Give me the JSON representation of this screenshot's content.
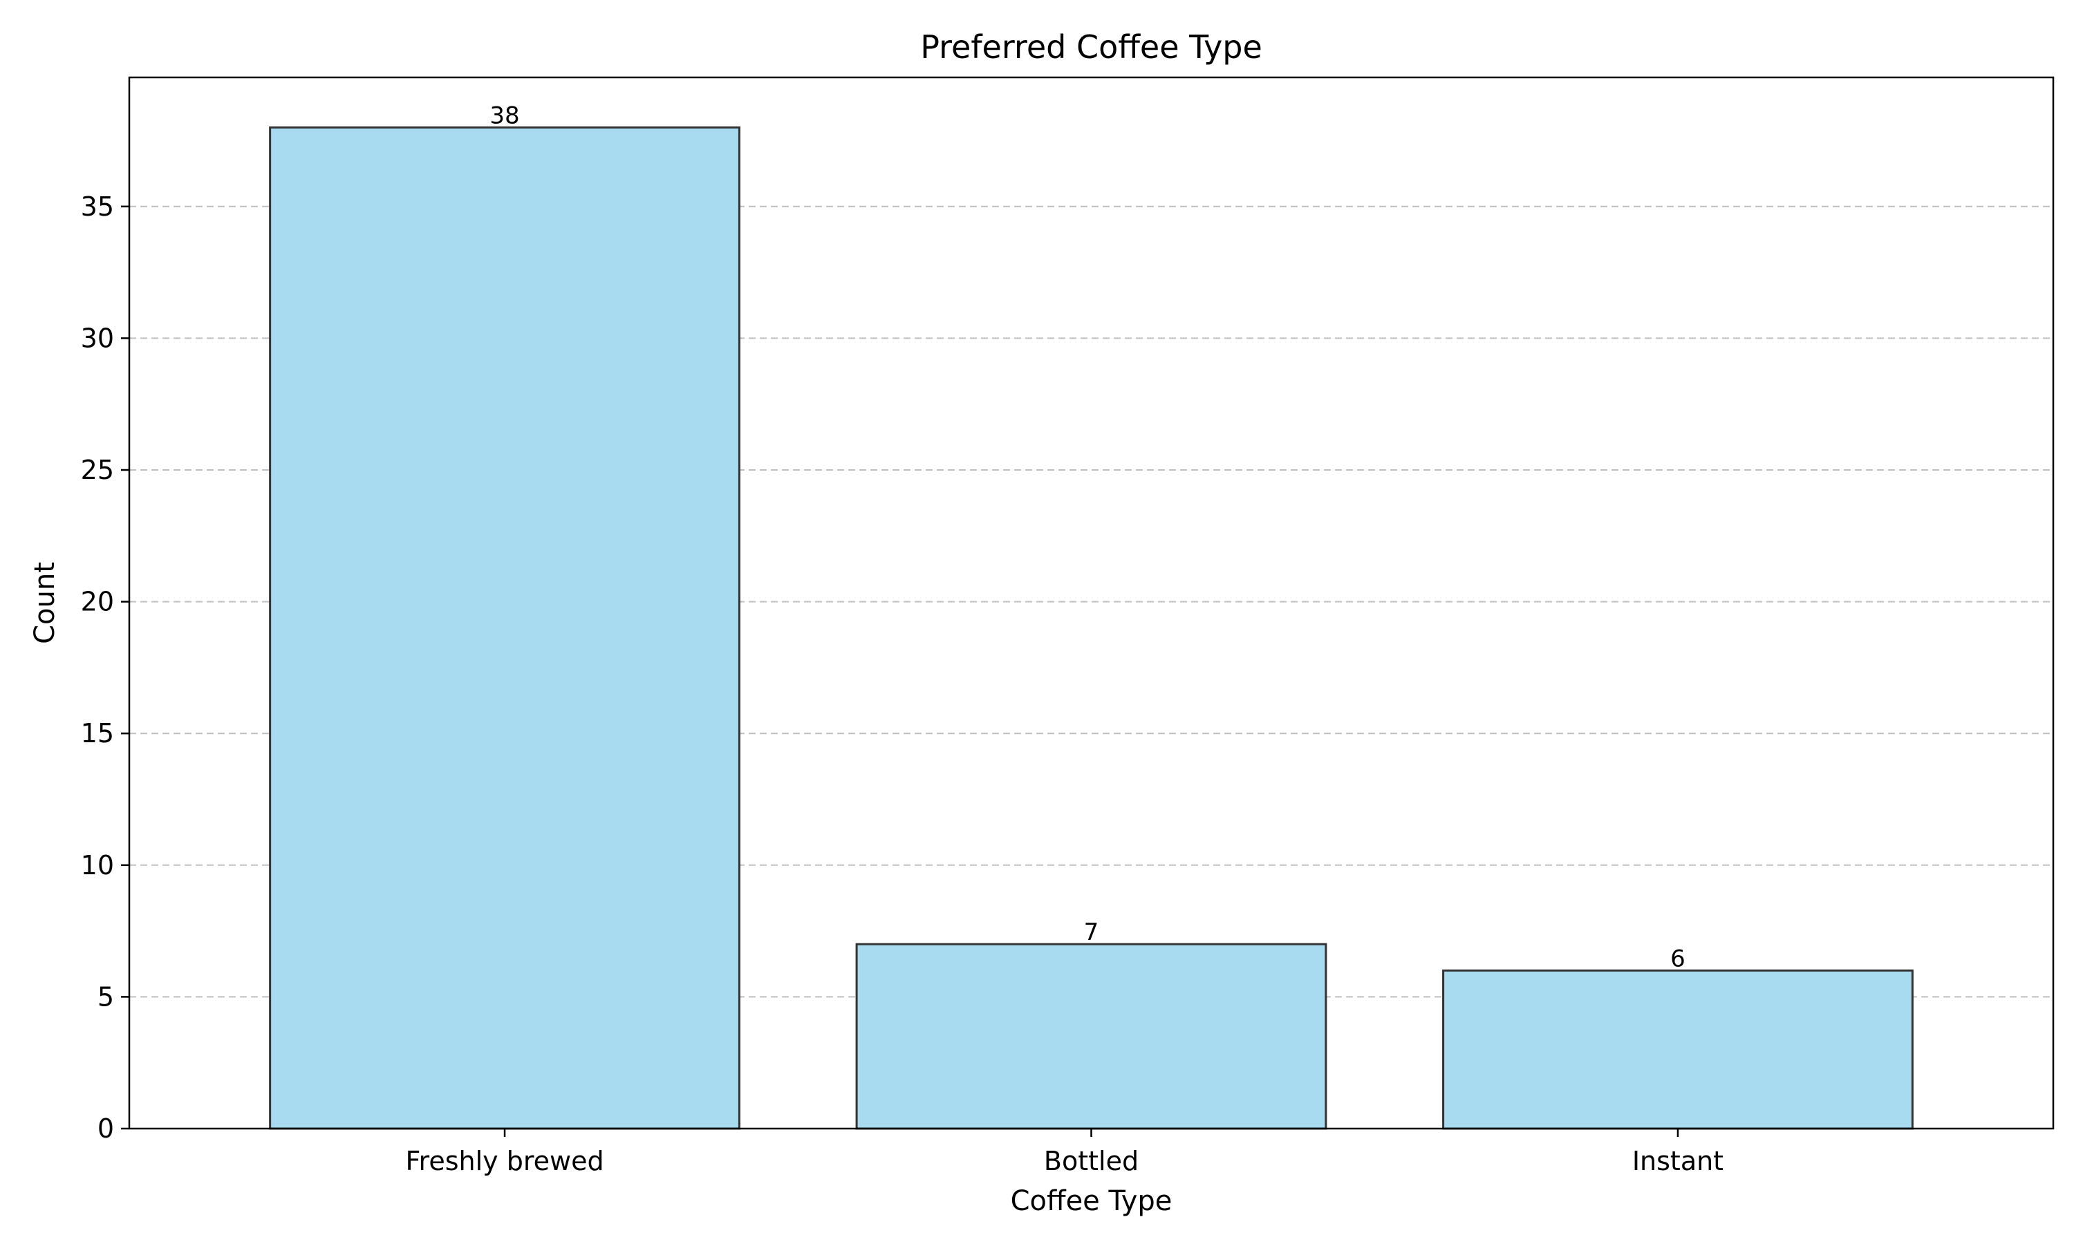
{
  "chart_data": {
    "type": "bar",
    "title": "Preferred Coffee Type",
    "xlabel": "Coffee Type",
    "ylabel": "Count",
    "categories": [
      "Freshly brewed",
      "Bottled",
      "Instant"
    ],
    "values": [
      38,
      7,
      6
    ],
    "data_labels": [
      "38",
      "7",
      "6"
    ],
    "ylim": [
      0,
      39.9
    ],
    "yticks": [
      0,
      5,
      10,
      15,
      20,
      25,
      30,
      35
    ],
    "grid": "y-dashed",
    "colors": {
      "bar_fill": "#a8dbef",
      "bar_edge": "#333333",
      "grid": "#c0c0c0",
      "axis": "#000000"
    }
  }
}
